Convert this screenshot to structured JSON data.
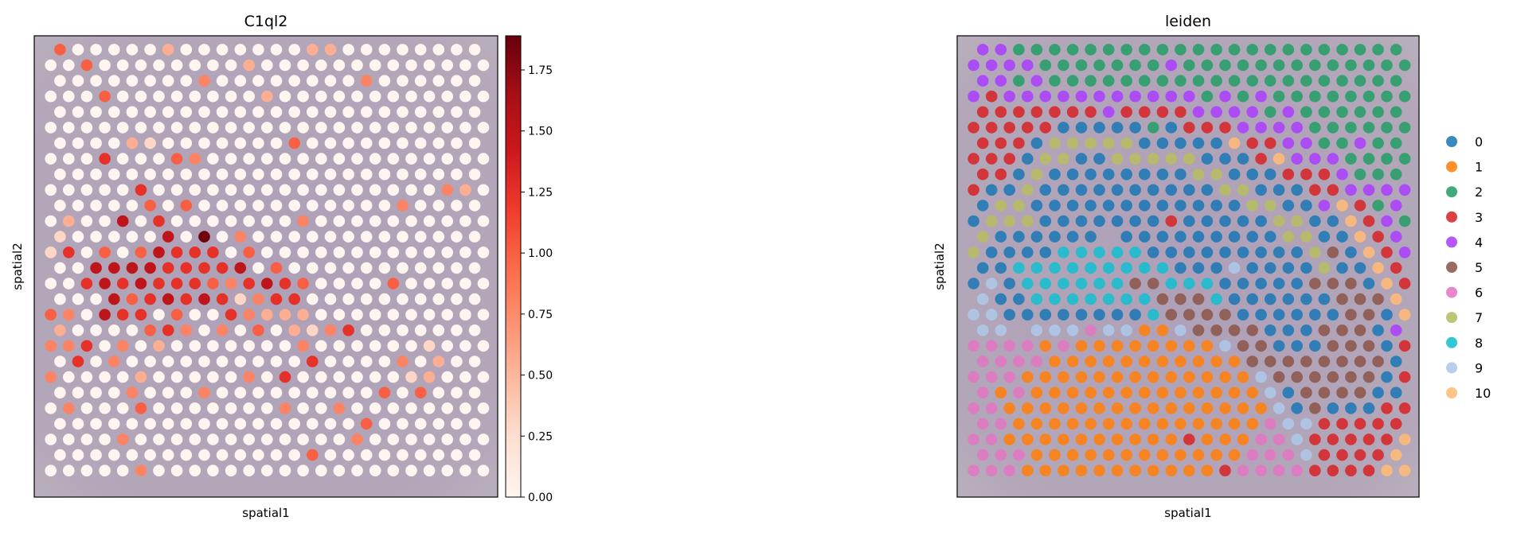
{
  "chart_data": [
    {
      "type": "scatter",
      "title": "C1ql2",
      "xlabel": "spatial1",
      "ylabel": "spatial2",
      "colormap": "Reds",
      "colorbar": {
        "min": 0.0,
        "max": 1.89,
        "ticks": [
          "0.00",
          "0.25",
          "0.50",
          "0.75",
          "1.00",
          "1.25",
          "1.50",
          "1.75"
        ]
      },
      "background": "tissue image",
      "default_value": 0,
      "nonzero_spots": [
        [
          0,
          0,
          1.0
        ],
        [
          0,
          6,
          0.55
        ],
        [
          0,
          14,
          0.55
        ],
        [
          0,
          15,
          0.55
        ],
        [
          1,
          2,
          1.0
        ],
        [
          1,
          11,
          0.55
        ],
        [
          2,
          8,
          0.8
        ],
        [
          2,
          17,
          0.8
        ],
        [
          3,
          3,
          1.0
        ],
        [
          3,
          12,
          0.55
        ],
        [
          6,
          4,
          0.55
        ],
        [
          6,
          5,
          0.3
        ],
        [
          6,
          13,
          1.0
        ],
        [
          7,
          3,
          1.25
        ],
        [
          7,
          7,
          1.0
        ],
        [
          7,
          8,
          0.8
        ],
        [
          9,
          5,
          1.25
        ],
        [
          9,
          22,
          0.8
        ],
        [
          9,
          23,
          0.55
        ],
        [
          10,
          5,
          1.0
        ],
        [
          10,
          7,
          1.0
        ],
        [
          10,
          19,
          0.8
        ],
        [
          11,
          1,
          0.55
        ],
        [
          11,
          4,
          1.5
        ],
        [
          11,
          6,
          1.25
        ],
        [
          11,
          14,
          0.8
        ],
        [
          12,
          0,
          0.3
        ],
        [
          12,
          6,
          1.5
        ],
        [
          12,
          8,
          1.85
        ],
        [
          12,
          10,
          0.8
        ],
        [
          13,
          0,
          0.3
        ],
        [
          13,
          1,
          1.25
        ],
        [
          13,
          3,
          1.0
        ],
        [
          13,
          5,
          1.0
        ],
        [
          13,
          6,
          1.5
        ],
        [
          13,
          7,
          1.25
        ],
        [
          13,
          8,
          1.25
        ],
        [
          13,
          9,
          1.25
        ],
        [
          13,
          11,
          1.0
        ],
        [
          14,
          2,
          1.5
        ],
        [
          14,
          3,
          1.5
        ],
        [
          14,
          4,
          1.5
        ],
        [
          14,
          5,
          1.5
        ],
        [
          14,
          6,
          1.25
        ],
        [
          14,
          7,
          1.25
        ],
        [
          14,
          8,
          1.25
        ],
        [
          14,
          9,
          1.25
        ],
        [
          14,
          10,
          1.5
        ],
        [
          14,
          12,
          1.0
        ],
        [
          15,
          2,
          1.25
        ],
        [
          15,
          3,
          1.5
        ],
        [
          15,
          4,
          1.25
        ],
        [
          15,
          5,
          1.5
        ],
        [
          15,
          6,
          1.25
        ],
        [
          15,
          7,
          1.25
        ],
        [
          15,
          8,
          1.25
        ],
        [
          15,
          9,
          1.0
        ],
        [
          15,
          10,
          0.8
        ],
        [
          15,
          11,
          1.25
        ],
        [
          15,
          12,
          1.5
        ],
        [
          15,
          13,
          1.25
        ],
        [
          15,
          14,
          1.0
        ],
        [
          15,
          19,
          1.0
        ],
        [
          16,
          3,
          1.5
        ],
        [
          16,
          4,
          1.0
        ],
        [
          16,
          5,
          1.25
        ],
        [
          16,
          6,
          1.5
        ],
        [
          16,
          7,
          1.25
        ],
        [
          16,
          8,
          1.5
        ],
        [
          16,
          9,
          1.25
        ],
        [
          16,
          10,
          0.3
        ],
        [
          16,
          11,
          0.8
        ],
        [
          16,
          12,
          1.25
        ],
        [
          16,
          13,
          1.25
        ],
        [
          17,
          0,
          1.0
        ],
        [
          17,
          1,
          0.8
        ],
        [
          17,
          3,
          1.5
        ],
        [
          17,
          4,
          1.25
        ],
        [
          17,
          5,
          1.25
        ],
        [
          17,
          7,
          1.0
        ],
        [
          17,
          10,
          1.25
        ],
        [
          17,
          11,
          0.8
        ],
        [
          17,
          12,
          0.55
        ],
        [
          17,
          13,
          0.55
        ],
        [
          17,
          14,
          0.55
        ],
        [
          18,
          0,
          0.55
        ],
        [
          18,
          5,
          1.0
        ],
        [
          18,
          6,
          1.25
        ],
        [
          18,
          7,
          0.8
        ],
        [
          18,
          9,
          0.8
        ],
        [
          18,
          11,
          1.0
        ],
        [
          18,
          13,
          0.55
        ],
        [
          18,
          14,
          0.3
        ],
        [
          18,
          15,
          0.8
        ],
        [
          18,
          16,
          1.25
        ],
        [
          19,
          0,
          0.8
        ],
        [
          19,
          1,
          0.8
        ],
        [
          19,
          2,
          1.25
        ],
        [
          19,
          4,
          0.8
        ],
        [
          19,
          6,
          0.55
        ],
        [
          19,
          14,
          0.8
        ],
        [
          19,
          21,
          0.3
        ],
        [
          20,
          1,
          1.25
        ],
        [
          20,
          3,
          0.8
        ],
        [
          20,
          14,
          1.25
        ],
        [
          20,
          19,
          0.8
        ],
        [
          20,
          21,
          0.55
        ],
        [
          21,
          0,
          0.8
        ],
        [
          21,
          5,
          0.55
        ],
        [
          21,
          11,
          0.8
        ],
        [
          21,
          13,
          1.25
        ],
        [
          21,
          20,
          0.3
        ],
        [
          21,
          21,
          0.55
        ],
        [
          22,
          4,
          0.8
        ],
        [
          22,
          8,
          0.8
        ],
        [
          22,
          18,
          1.0
        ],
        [
          22,
          20,
          1.0
        ],
        [
          23,
          1,
          0.8
        ],
        [
          23,
          5,
          1.0
        ],
        [
          23,
          13,
          0.8
        ],
        [
          23,
          16,
          0.8
        ],
        [
          24,
          17,
          1.0
        ],
        [
          25,
          4,
          0.8
        ],
        [
          25,
          17,
          0.8
        ],
        [
          26,
          14,
          1.0
        ],
        [
          27,
          5,
          0.8
        ]
      ]
    },
    {
      "type": "scatter",
      "title": "leiden",
      "xlabel": "spatial1",
      "ylabel": "spatial2",
      "background": "tissue image",
      "legend": {
        "placement": "right",
        "entries": [
          {
            "label": "0",
            "color": "#1f77b4"
          },
          {
            "label": "1",
            "color": "#ff7f0e"
          },
          {
            "label": "2",
            "color": "#279e68"
          },
          {
            "label": "3",
            "color": "#d62728"
          },
          {
            "label": "4",
            "color": "#aa40fc"
          },
          {
            "label": "5",
            "color": "#8c564b"
          },
          {
            "label": "6",
            "color": "#e377c2"
          },
          {
            "label": "7",
            "color": "#b5bd61"
          },
          {
            "label": "8",
            "color": "#17becf"
          },
          {
            "label": "9",
            "color": "#aec7e8"
          },
          {
            "label": "10",
            "color": "#ffbb78"
          }
        ]
      },
      "spot_clusters": [
        [
          4,
          4,
          2,
          2,
          2,
          2,
          2,
          2,
          2,
          2,
          2,
          2,
          2,
          2,
          2,
          2,
          2,
          2,
          2,
          2,
          2,
          2,
          2,
          2
        ],
        [
          4,
          4,
          4,
          4,
          2,
          2,
          2,
          2,
          2,
          2,
          2,
          4,
          2,
          2,
          2,
          2,
          2,
          2,
          2,
          2,
          2,
          2,
          2,
          2,
          2
        ],
        [
          4,
          4,
          2,
          4,
          2,
          2,
          2,
          2,
          2,
          2,
          2,
          2,
          2,
          2,
          2,
          2,
          2,
          2,
          2,
          2,
          2,
          2,
          2,
          2
        ],
        [
          4,
          3,
          4,
          4,
          4,
          4,
          4,
          4,
          4,
          4,
          4,
          4,
          4,
          2,
          4,
          2,
          4,
          2,
          2,
          2,
          2,
          2,
          2,
          2,
          2
        ],
        [
          3,
          3,
          3,
          3,
          3,
          3,
          3,
          4,
          3,
          3,
          3,
          3,
          4,
          4,
          4,
          4,
          2,
          4,
          2,
          2,
          2,
          2,
          2,
          2
        ],
        [
          3,
          3,
          3,
          3,
          3,
          0,
          0,
          0,
          0,
          0,
          2,
          0,
          3,
          3,
          3,
          4,
          4,
          4,
          4,
          2,
          2,
          2,
          2,
          2,
          2
        ],
        [
          3,
          3,
          3,
          0,
          7,
          7,
          7,
          7,
          7,
          0,
          0,
          0,
          0,
          0,
          10,
          3,
          3,
          4,
          4,
          2,
          2,
          4,
          2,
          2
        ],
        [
          3,
          3,
          3,
          0,
          7,
          7,
          0,
          0,
          7,
          7,
          7,
          7,
          7,
          0,
          0,
          0,
          3,
          10,
          4,
          4,
          4,
          2,
          2,
          2,
          2
        ],
        [
          3,
          3,
          0,
          7,
          0,
          0,
          0,
          0,
          0,
          0,
          0,
          0,
          7,
          7,
          0,
          0,
          0,
          3,
          3,
          3,
          4,
          2,
          2,
          2
        ],
        [
          3,
          0,
          0,
          7,
          0,
          0,
          0,
          0,
          0,
          0,
          0,
          0,
          0,
          0,
          7,
          7,
          0,
          0,
          0,
          3,
          3,
          4,
          4,
          4,
          4
        ],
        [
          0,
          7,
          7,
          0,
          0,
          0,
          0,
          0,
          0,
          0,
          0,
          0,
          0,
          0,
          0,
          7,
          7,
          0,
          0,
          4,
          10,
          3,
          2,
          4
        ],
        [
          0,
          7,
          7,
          7,
          0,
          0,
          0,
          0,
          0,
          0,
          0,
          3,
          0,
          0,
          0,
          0,
          0,
          7,
          7,
          0,
          0,
          10,
          3,
          4,
          2
        ],
        [
          7,
          0,
          0,
          0,
          0,
          0,
          0,
          null,
          0,
          0,
          0,
          0,
          0,
          0,
          0,
          0,
          0,
          7,
          7,
          0,
          0,
          10,
          3,
          4
        ],
        [
          7,
          0,
          0,
          0,
          0,
          8,
          8,
          8,
          8,
          8,
          0,
          0,
          0,
          0,
          0,
          0,
          0,
          0,
          0,
          7,
          5,
          0,
          10,
          3,
          4
        ],
        [
          0,
          0,
          8,
          8,
          8,
          8,
          8,
          8,
          8,
          8,
          8,
          0,
          0,
          0,
          9,
          0,
          0,
          0,
          0,
          7,
          0,
          0,
          10,
          3
        ],
        [
          0,
          9,
          0,
          8,
          8,
          8,
          8,
          8,
          8,
          5,
          5,
          8,
          8,
          8,
          0,
          0,
          0,
          0,
          0,
          5,
          5,
          5,
          0,
          10,
          3
        ],
        [
          9,
          0,
          0,
          8,
          8,
          8,
          8,
          8,
          8,
          8,
          5,
          5,
          5,
          8,
          0,
          0,
          0,
          0,
          0,
          0,
          5,
          5,
          5,
          10
        ],
        [
          9,
          9,
          0,
          0,
          0,
          0,
          0,
          0,
          0,
          0,
          8,
          5,
          5,
          5,
          5,
          0,
          0,
          0,
          0,
          0,
          0,
          5,
          5,
          0,
          10
        ],
        [
          9,
          9,
          null,
          9,
          9,
          9,
          6,
          9,
          9,
          1,
          1,
          9,
          5,
          5,
          5,
          5,
          0,
          0,
          0,
          5,
          5,
          5,
          0,
          4
        ],
        [
          6,
          6,
          6,
          6,
          1,
          6,
          1,
          1,
          1,
          1,
          1,
          1,
          1,
          1,
          9,
          5,
          5,
          0,
          0,
          0,
          5,
          5,
          5,
          0,
          3
        ],
        [
          6,
          6,
          6,
          6,
          1,
          1,
          1,
          1,
          1,
          1,
          1,
          1,
          1,
          1,
          1,
          5,
          5,
          5,
          5,
          5,
          5,
          5,
          5,
          0
        ],
        [
          6,
          6,
          6,
          1,
          1,
          1,
          1,
          1,
          1,
          1,
          1,
          1,
          1,
          1,
          1,
          1,
          9,
          5,
          5,
          5,
          5,
          5,
          5,
          0,
          3
        ],
        [
          6,
          1,
          6,
          1,
          1,
          1,
          1,
          1,
          1,
          1,
          1,
          1,
          1,
          1,
          1,
          1,
          9,
          0,
          5,
          5,
          5,
          5,
          0,
          0
        ],
        [
          6,
          6,
          1,
          1,
          1,
          1,
          1,
          1,
          1,
          1,
          1,
          1,
          1,
          1,
          1,
          1,
          1,
          9,
          0,
          5,
          0,
          0,
          0,
          3,
          3
        ],
        [
          6,
          6,
          1,
          1,
          1,
          1,
          1,
          1,
          1,
          1,
          1,
          1,
          1,
          1,
          1,
          1,
          6,
          9,
          9,
          3,
          3,
          3,
          3,
          3
        ],
        [
          6,
          6,
          1,
          1,
          1,
          1,
          1,
          1,
          1,
          1,
          1,
          1,
          3,
          1,
          1,
          1,
          6,
          6,
          9,
          3,
          3,
          3,
          3,
          3,
          10
        ],
        [
          6,
          6,
          6,
          1,
          1,
          1,
          1,
          1,
          1,
          1,
          1,
          1,
          1,
          1,
          1,
          6,
          6,
          6,
          9,
          3,
          3,
          3,
          3,
          10
        ],
        [
          6,
          6,
          6,
          1,
          1,
          1,
          1,
          1,
          1,
          1,
          1,
          1,
          1,
          1,
          3,
          6,
          6,
          6,
          6,
          3,
          3,
          3,
          3,
          10,
          10
        ]
      ]
    }
  ]
}
